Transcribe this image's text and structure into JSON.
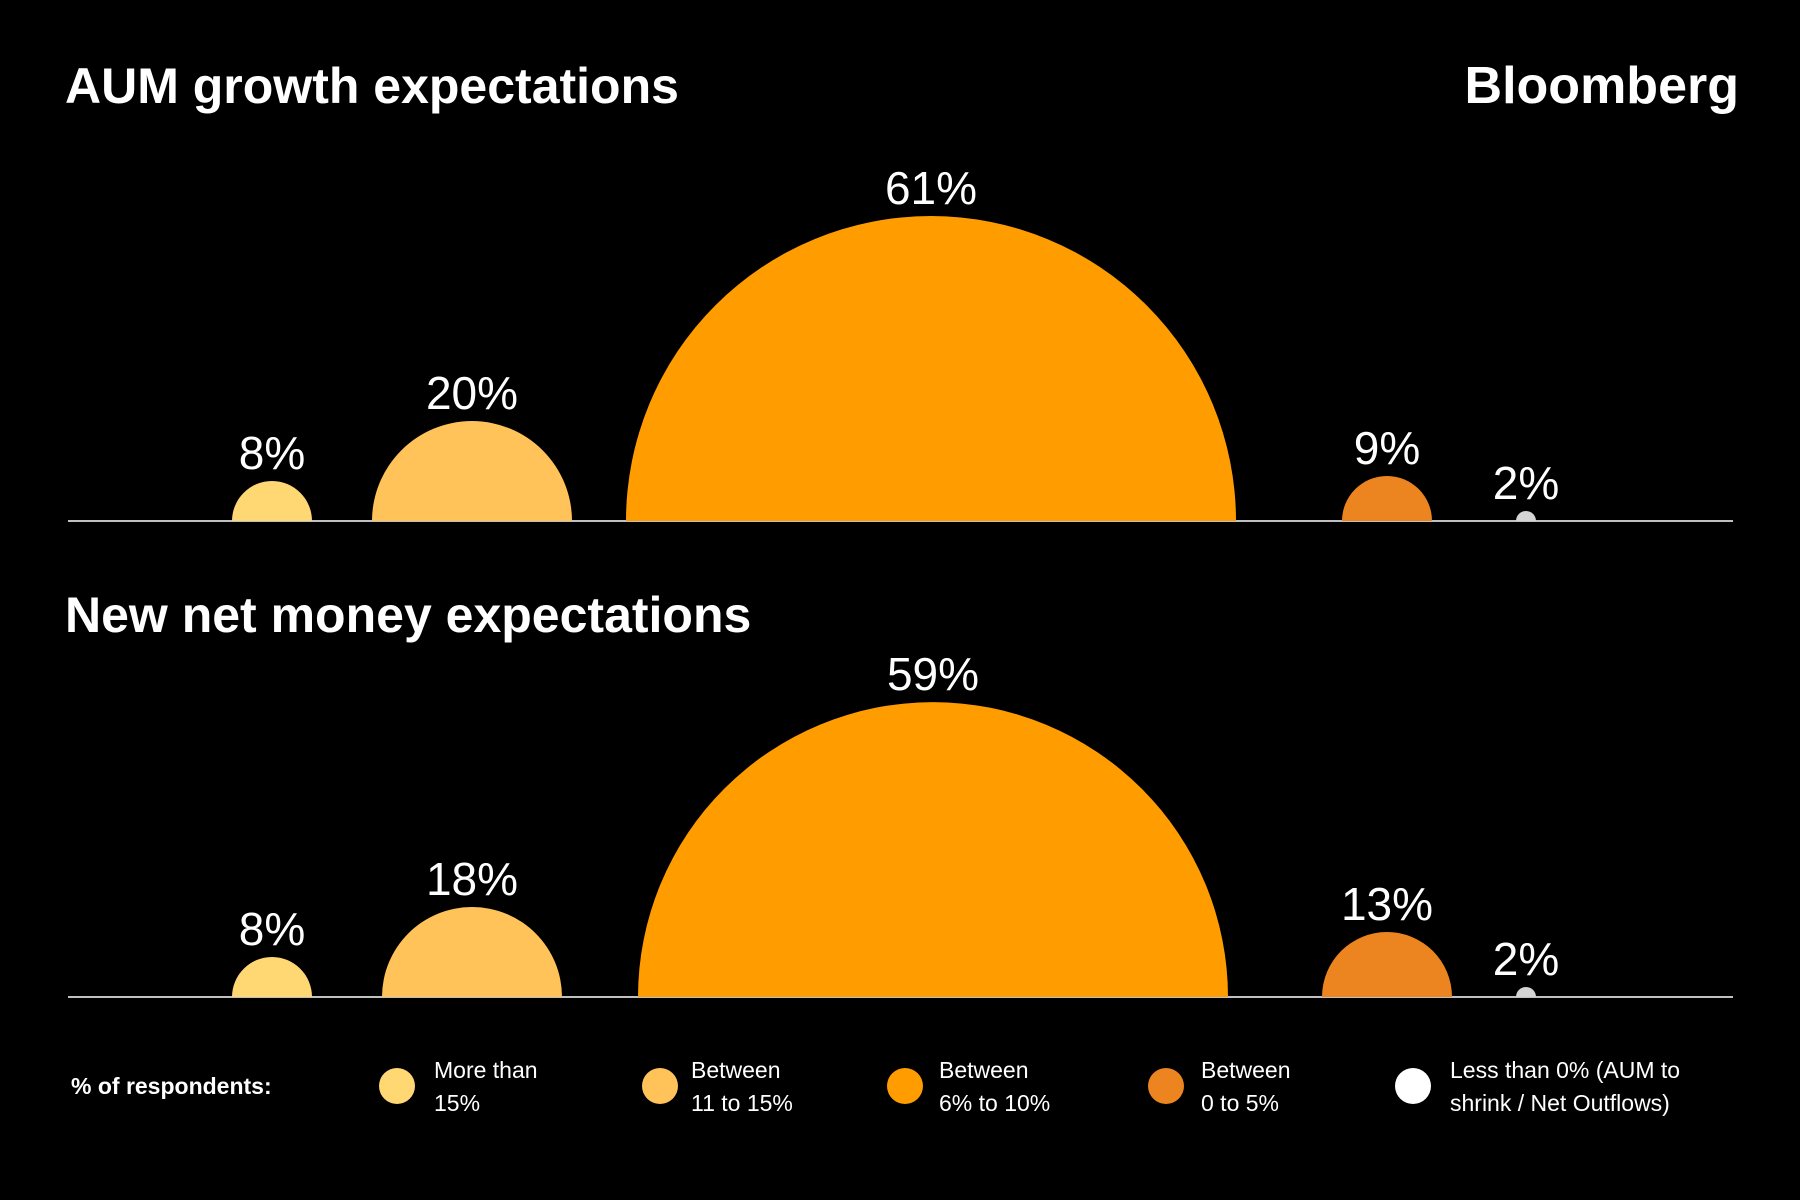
{
  "brand": "Bloomberg",
  "colors": {
    "more_than_15": "#FFD874",
    "between_11_15": "#FFC35A",
    "between_6_10": "#FF9D00",
    "between_0_5": "#EC8420",
    "less_than_0": "#D4D4D4",
    "legend_less_than_0": "#FFFFFF",
    "background": "#000000",
    "text": "#FFFFFF"
  },
  "chart_data": [
    {
      "type": "bar",
      "shape": "semicircle",
      "title": "AUM growth expectations",
      "unit": "% of respondents",
      "categories": [
        "More than 15%",
        "Between 11 to 15%",
        "Between 6% to 10%",
        "Between 0 to 5%",
        "Less than 0% (AUM to shrink / Net Outflows)"
      ],
      "values": [
        8,
        20,
        61,
        9,
        2
      ],
      "labels": [
        "8%",
        "20%",
        "61%",
        "9%",
        "2%"
      ]
    },
    {
      "type": "bar",
      "shape": "semicircle",
      "title": "New net money expectations",
      "unit": "% of respondents",
      "categories": [
        "More than 15%",
        "Between 11 to 15%",
        "Between 6% to 10%",
        "Between 0 to 5%",
        "Less than 0% (AUM to shrink / Net Outflows)"
      ],
      "values": [
        8,
        18,
        59,
        13,
        2
      ],
      "labels": [
        "8%",
        "18%",
        "59%",
        "13%",
        "2%"
      ]
    }
  ],
  "legend": {
    "title": "% of respondents:",
    "placement": "bottom",
    "items": [
      {
        "line1": "More than",
        "line2": "15%"
      },
      {
        "line1": "Between",
        "line2": "11 to 15%"
      },
      {
        "line1": "Between",
        "line2": "6% to 10%"
      },
      {
        "line1": "Between",
        "line2": "0 to 5%"
      },
      {
        "line1": "Less than 0% (AUM to",
        "line2": "shrink / Net Outflows)"
      }
    ]
  }
}
